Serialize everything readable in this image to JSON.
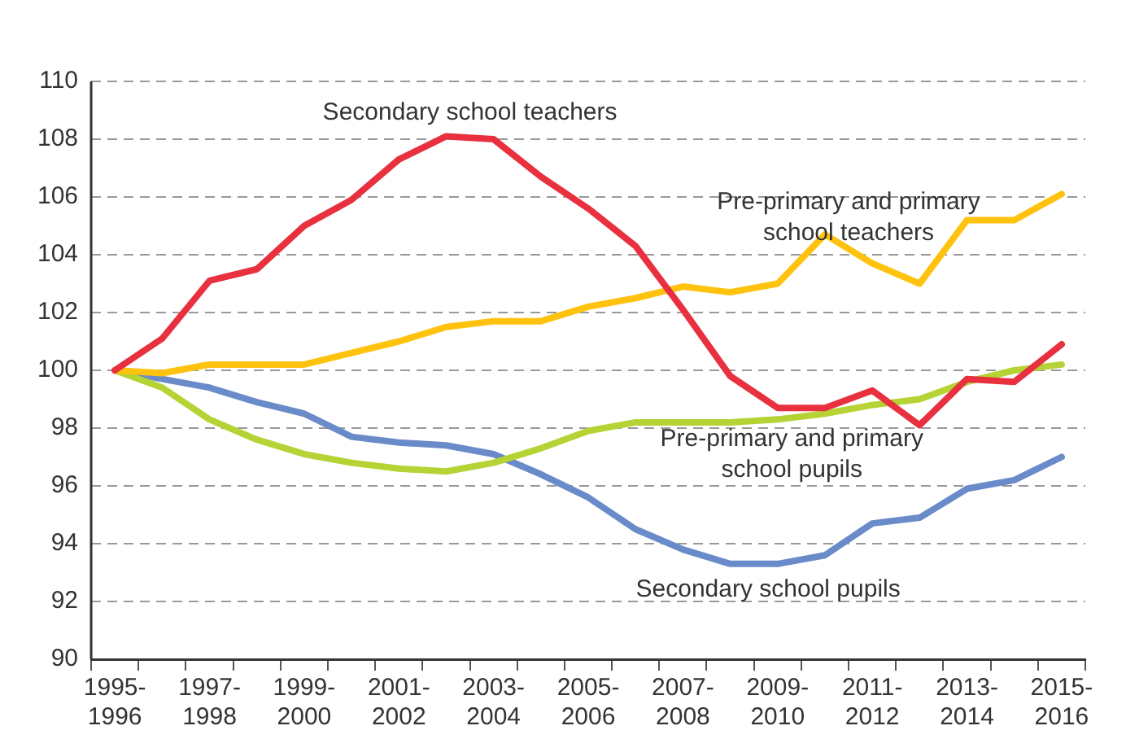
{
  "chart_data": {
    "type": "line",
    "categories": [
      "1995-1996",
      null,
      "1997-1998",
      null,
      "1999-2000",
      null,
      "2001-2002",
      null,
      "2003-2004",
      null,
      "2005-2006",
      null,
      "2007-2008",
      null,
      "2009-2010",
      null,
      "2011-2012",
      null,
      "2013-2014",
      null,
      "2015-2016"
    ],
    "series": [
      {
        "name": "Secondary school teachers",
        "color": "#e8303f",
        "values": [
          100,
          101.1,
          103.1,
          103.5,
          105.0,
          105.9,
          107.3,
          108.1,
          108.0,
          106.7,
          105.6,
          104.3,
          102.1,
          99.8,
          98.7,
          98.7,
          99.3,
          98.1,
          99.7,
          99.6,
          100.9
        ]
      },
      {
        "name": "Pre-primary and primary school teachers",
        "color": "#ffc20e",
        "values": [
          100,
          99.9,
          100.2,
          100.2,
          100.2,
          100.6,
          101.0,
          101.5,
          101.7,
          101.7,
          102.2,
          102.5,
          102.9,
          102.7,
          103.0,
          104.7,
          103.7,
          103.0,
          105.2,
          105.2,
          106.1
        ]
      },
      {
        "name": "Pre-primary and primary school pupils",
        "color": "#b5d334",
        "values": [
          100,
          99.4,
          98.3,
          97.6,
          97.1,
          96.8,
          96.6,
          96.5,
          96.8,
          97.3,
          97.9,
          98.2,
          98.2,
          98.2,
          98.3,
          98.5,
          98.8,
          99.0,
          99.6,
          100.0,
          100.2
        ]
      },
      {
        "name": "Secondary school pupils",
        "color": "#6a8bc9",
        "values": [
          100,
          99.7,
          99.4,
          98.9,
          98.5,
          97.7,
          97.5,
          97.4,
          97.1,
          96.4,
          95.6,
          94.5,
          93.8,
          93.3,
          93.3,
          93.6,
          94.7,
          94.9,
          95.9,
          96.2,
          97.0
        ]
      }
    ],
    "ylim": [
      90,
      110
    ],
    "yticks": [
      90,
      92,
      94,
      96,
      98,
      100,
      102,
      104,
      106,
      108,
      110
    ],
    "grid": "y",
    "legend": false,
    "marker": "none",
    "line_style": "solid"
  }
}
